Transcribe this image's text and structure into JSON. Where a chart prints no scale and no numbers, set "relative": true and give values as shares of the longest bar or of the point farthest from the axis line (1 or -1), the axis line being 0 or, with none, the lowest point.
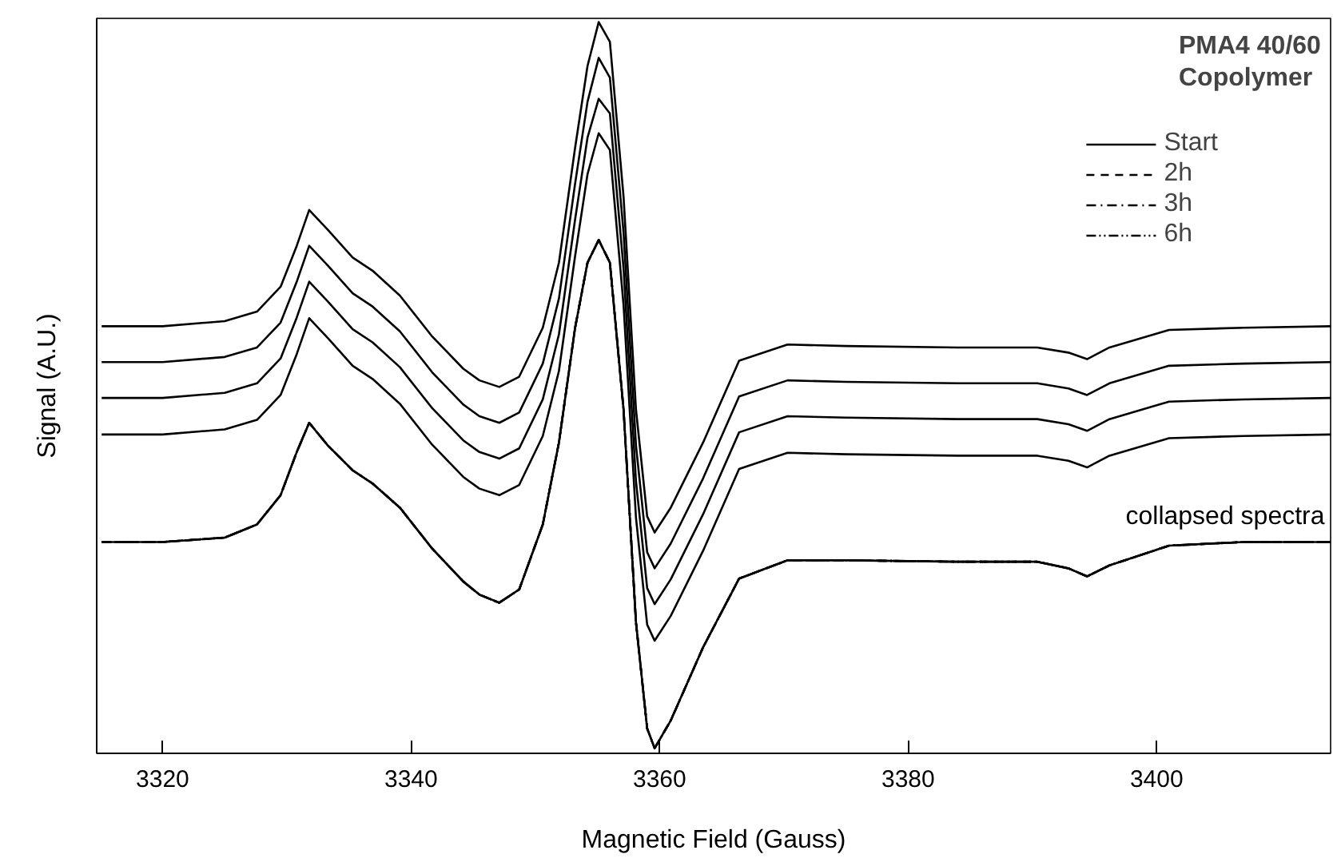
{
  "chart_data": {
    "type": "line",
    "title": "PMA4 40/60\nCopolymer",
    "xlabel": "Magnetic Field (Gauss)",
    "ylabel": "Signal (A.U.)",
    "relative": true,
    "xlim": [
      3314.7,
      3414
    ],
    "xticks": [
      3320,
      3340,
      3360,
      3380,
      3400
    ],
    "x": [
      3315.1,
      3320,
      3325,
      3327.6,
      3329.5,
      3330.8,
      3331.8,
      3333.3,
      3335.3,
      3336.9,
      3339.1,
      3341.7,
      3344.2,
      3345.5,
      3347.1,
      3348.7,
      3350.6,
      3351.9,
      3353.2,
      3354.2,
      3355.1,
      3356,
      3357.1,
      3358.1,
      3359,
      3359.6,
      3360.9,
      3363.5,
      3366.4,
      3370.3,
      3375,
      3384,
      3390.4,
      3392.9,
      3394.4,
      3396.2,
      3401,
      3407,
      3414
    ],
    "series": [
      {
        "color": "#000000",
        "line_style": "solid",
        "values": [
          0.584,
          0.584,
          0.591,
          0.604,
          0.638,
          0.694,
          0.743,
          0.716,
          0.678,
          0.66,
          0.626,
          0.57,
          0.526,
          0.51,
          0.501,
          0.515,
          0.582,
          0.671,
          0.828,
          0.94,
          1.0,
          0.973,
          0.761,
          0.47,
          0.324,
          0.302,
          0.336,
          0.425,
          0.537,
          0.559,
          0.557,
          0.555,
          0.555,
          0.548,
          0.539,
          0.555,
          0.579,
          0.582,
          0.584
        ]
      },
      {
        "color": "#000000",
        "line_style": "solid",
        "values": [
          0.535,
          0.535,
          0.542,
          0.555,
          0.589,
          0.645,
          0.694,
          0.667,
          0.629,
          0.611,
          0.577,
          0.521,
          0.477,
          0.461,
          0.452,
          0.466,
          0.533,
          0.622,
          0.779,
          0.891,
          0.951,
          0.924,
          0.712,
          0.421,
          0.275,
          0.253,
          0.287,
          0.376,
          0.488,
          0.51,
          0.508,
          0.506,
          0.506,
          0.499,
          0.49,
          0.506,
          0.53,
          0.533,
          0.535
        ]
      },
      {
        "color": "#000000",
        "line_style": "solid",
        "values": [
          0.486,
          0.486,
          0.493,
          0.506,
          0.54,
          0.596,
          0.645,
          0.618,
          0.58,
          0.562,
          0.528,
          0.472,
          0.428,
          0.412,
          0.403,
          0.417,
          0.484,
          0.573,
          0.73,
          0.842,
          0.895,
          0.875,
          0.663,
          0.372,
          0.226,
          0.204,
          0.238,
          0.327,
          0.439,
          0.461,
          0.459,
          0.457,
          0.457,
          0.45,
          0.441,
          0.457,
          0.481,
          0.484,
          0.486
        ]
      },
      {
        "color": "#000000",
        "line_style": "solid",
        "values": [
          0.436,
          0.436,
          0.443,
          0.456,
          0.49,
          0.546,
          0.595,
          0.568,
          0.53,
          0.512,
          0.478,
          0.422,
          0.378,
          0.362,
          0.353,
          0.367,
          0.434,
          0.523,
          0.68,
          0.792,
          0.848,
          0.825,
          0.613,
          0.322,
          0.176,
          0.154,
          0.188,
          0.277,
          0.389,
          0.411,
          0.409,
          0.407,
          0.407,
          0.4,
          0.391,
          0.407,
          0.431,
          0.434,
          0.436
        ]
      },
      {
        "name": "Start",
        "color": "#000000",
        "line_style": "solid",
        "values": [
          0.289,
          0.289,
          0.295,
          0.313,
          0.353,
          0.412,
          0.452,
          0.421,
          0.387,
          0.369,
          0.336,
          0.28,
          0.235,
          0.217,
          0.206,
          0.224,
          0.313,
          0.425,
          0.582,
          0.671,
          0.702,
          0.671,
          0.47,
          0.179,
          0.034,
          0.007,
          0.045,
          0.145,
          0.239,
          0.264,
          0.264,
          0.262,
          0.262,
          0.253,
          0.242,
          0.257,
          0.284,
          0.289,
          0.289
        ]
      },
      {
        "name": "2h",
        "color": "#000000",
        "line_style": "dashed",
        "values": [
          0.289,
          0.289,
          0.295,
          0.313,
          0.353,
          0.412,
          0.452,
          0.421,
          0.387,
          0.369,
          0.336,
          0.28,
          0.235,
          0.217,
          0.206,
          0.224,
          0.313,
          0.425,
          0.582,
          0.671,
          0.702,
          0.671,
          0.47,
          0.179,
          0.034,
          0.007,
          0.045,
          0.145,
          0.239,
          0.264,
          0.264,
          0.262,
          0.262,
          0.253,
          0.242,
          0.257,
          0.284,
          0.289,
          0.289
        ]
      },
      {
        "name": "3h",
        "color": "#000000",
        "line_style": "dashdot",
        "values": [
          0.289,
          0.289,
          0.295,
          0.313,
          0.353,
          0.412,
          0.452,
          0.421,
          0.387,
          0.369,
          0.336,
          0.28,
          0.235,
          0.217,
          0.206,
          0.224,
          0.313,
          0.425,
          0.582,
          0.671,
          0.702,
          0.671,
          0.47,
          0.179,
          0.034,
          0.007,
          0.045,
          0.145,
          0.239,
          0.264,
          0.264,
          0.262,
          0.262,
          0.253,
          0.242,
          0.257,
          0.284,
          0.289,
          0.289
        ]
      },
      {
        "name": "6h",
        "color": "#000000",
        "line_style": "dashdotdot",
        "values": [
          0.289,
          0.289,
          0.295,
          0.313,
          0.353,
          0.412,
          0.452,
          0.421,
          0.387,
          0.369,
          0.336,
          0.28,
          0.235,
          0.217,
          0.206,
          0.224,
          0.313,
          0.425,
          0.582,
          0.671,
          0.702,
          0.671,
          0.47,
          0.179,
          0.034,
          0.007,
          0.045,
          0.145,
          0.239,
          0.264,
          0.264,
          0.262,
          0.262,
          0.253,
          0.242,
          0.257,
          0.284,
          0.289,
          0.289
        ]
      }
    ],
    "annotations": [
      "collapsed spectra"
    ],
    "legend": "top right",
    "grid": false
  }
}
